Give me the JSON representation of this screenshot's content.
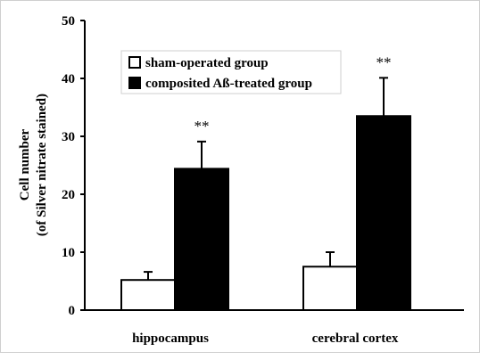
{
  "chart_data": {
    "type": "bar",
    "categories": [
      "hippocampus",
      "cerebral cortex"
    ],
    "series": [
      {
        "name": "sham-operated group",
        "values": [
          5.2,
          7.5
        ],
        "errors": [
          1.4,
          2.5
        ],
        "color": "#ffffff"
      },
      {
        "name": "composited Aß-treated group",
        "values": [
          24.4,
          33.5
        ],
        "errors": [
          4.7,
          6.6
        ],
        "color": "#000000"
      }
    ],
    "annotations": [
      "**",
      "**"
    ],
    "ylabel_line1": "Cell number",
    "ylabel_line2": "(of Silver nitrate stained)",
    "ylim": [
      0,
      50
    ],
    "yticks": [
      "0",
      "10",
      "20",
      "30",
      "40",
      "50"
    ],
    "grid": false,
    "legend_position": "top-left"
  }
}
